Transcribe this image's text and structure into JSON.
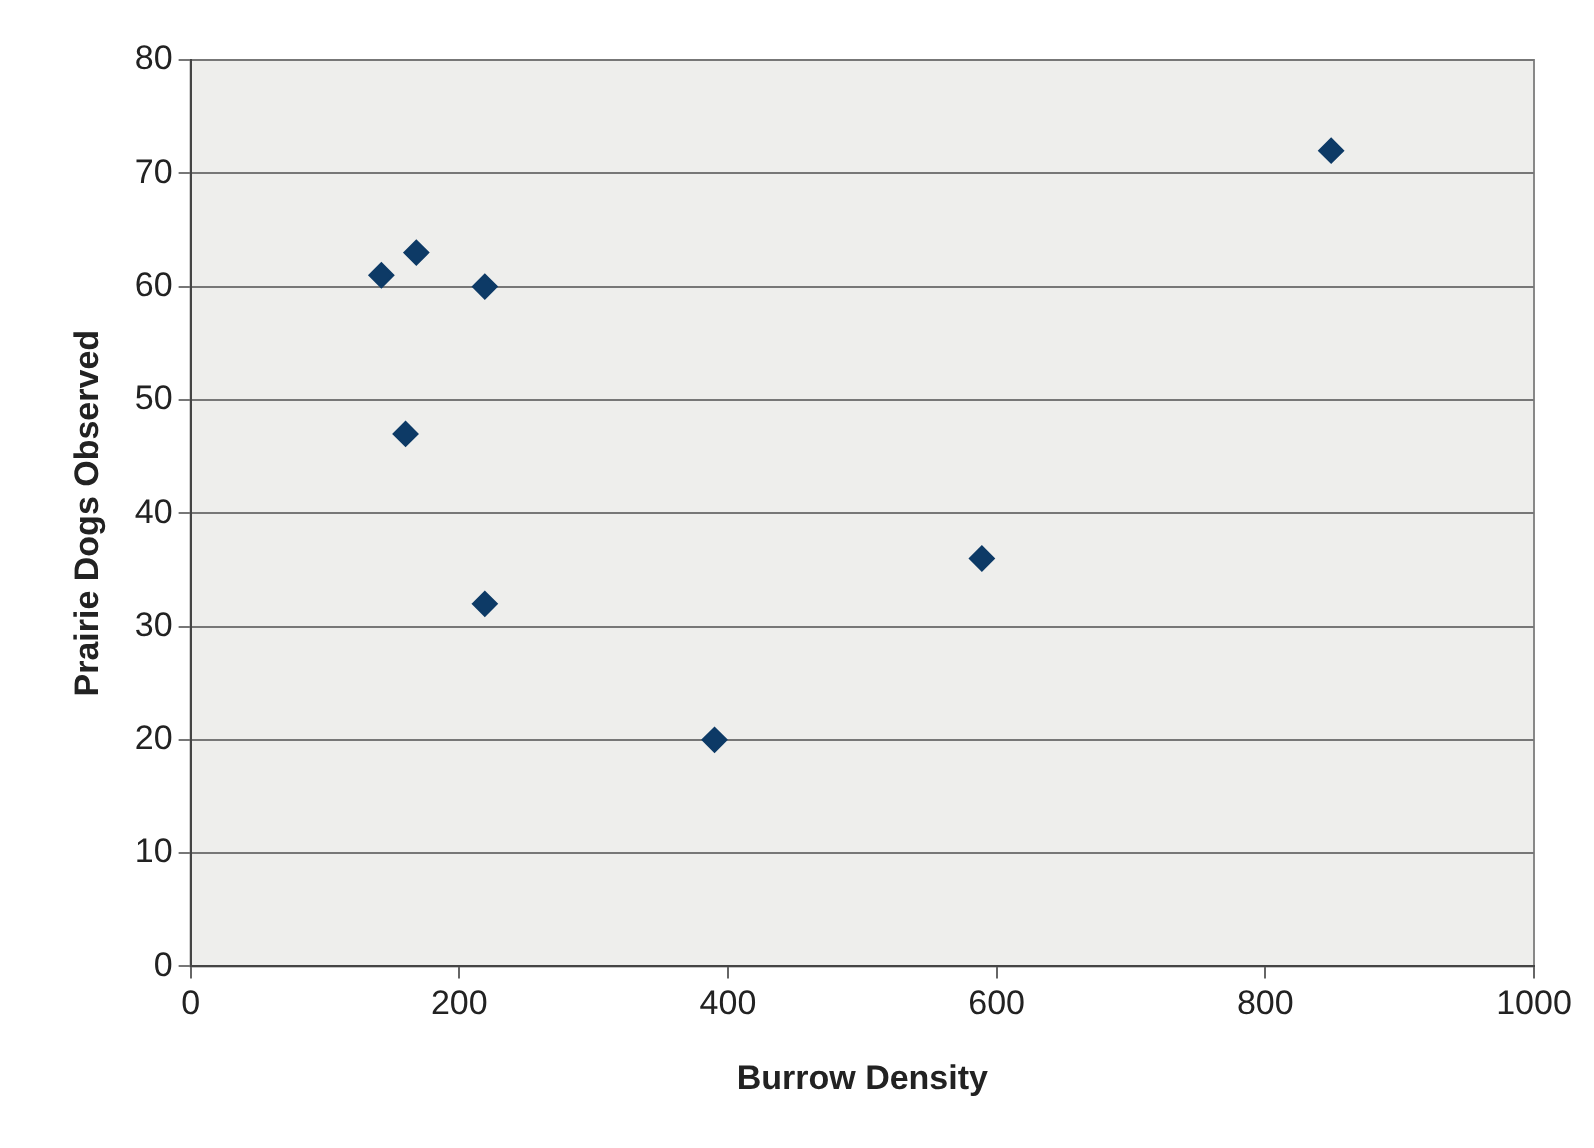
{
  "chart_data": {
    "type": "scatter",
    "xlabel": "Burrow Density",
    "ylabel": "Prairie Dogs Observed",
    "x": [
      142,
      168,
      219,
      160,
      219,
      390,
      589,
      849
    ],
    "series": [
      {
        "color": "#0d3a66",
        "values": [
          61,
          63,
          60,
          47,
          32,
          20,
          36,
          72
        ]
      }
    ],
    "xlim": [
      0,
      1000
    ],
    "xticks": [
      0,
      200,
      400,
      600,
      800,
      1000
    ],
    "ylim": [
      0,
      80
    ],
    "yticks": [
      0,
      10,
      20,
      30,
      40,
      50,
      60,
      70,
      80
    ],
    "grid": "y",
    "legend": false,
    "marker": "diamond"
  }
}
